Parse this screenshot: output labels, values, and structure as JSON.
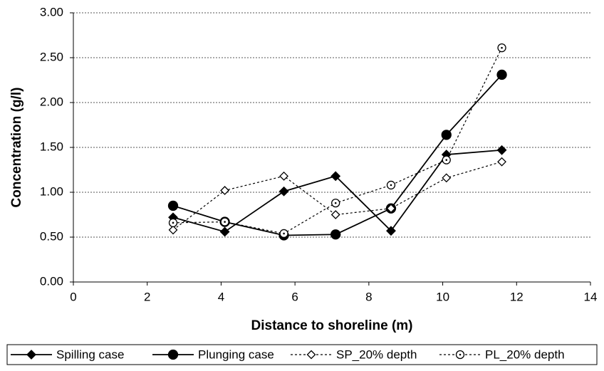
{
  "chart_data": {
    "type": "line",
    "x_label": "Distance to shoreline (m)",
    "y_label": "Concentration (g/l)",
    "x": [
      2.7,
      4.1,
      5.7,
      7.1,
      8.6,
      10.1,
      11.6
    ],
    "series": [
      {
        "name": "Spilling case",
        "color": "#000000",
        "marker": "diamond",
        "filled": true,
        "dashed": false,
        "values": [
          0.72,
          0.56,
          1.01,
          1.18,
          0.57,
          1.42,
          1.47
        ]
      },
      {
        "name": "Plunging case",
        "color": "#000000",
        "marker": "circle",
        "filled": true,
        "dashed": false,
        "values": [
          0.85,
          0.67,
          0.52,
          0.53,
          0.82,
          1.64,
          2.31
        ]
      },
      {
        "name": "SP_20% depth",
        "color": "#000000",
        "marker": "diamond",
        "filled": false,
        "dashed": true,
        "values": [
          0.58,
          1.02,
          1.18,
          0.75,
          0.82,
          1.16,
          1.34
        ]
      },
      {
        "name": "PL_20% depth",
        "color": "#000000",
        "marker": "circle",
        "filled": false,
        "dashed": true,
        "values": [
          0.66,
          0.67,
          0.54,
          0.88,
          1.08,
          1.36,
          2.61
        ]
      }
    ],
    "xlim": [
      0,
      14
    ],
    "xticks": [
      0,
      2,
      4,
      6,
      8,
      10,
      12,
      14
    ],
    "ylim": [
      0,
      3
    ],
    "yticks": [
      {
        "value": 0,
        "label": "0.00"
      },
      {
        "value": 0.5,
        "label": "0.50"
      },
      {
        "value": 1,
        "label": "1.00"
      },
      {
        "value": 1.5,
        "label": "1.50"
      },
      {
        "value": 2,
        "label": "2.00"
      },
      {
        "value": 2.5,
        "label": "2.50"
      },
      {
        "value": 3,
        "label": "3.00"
      }
    ],
    "grid": true,
    "legend": "bottom"
  }
}
